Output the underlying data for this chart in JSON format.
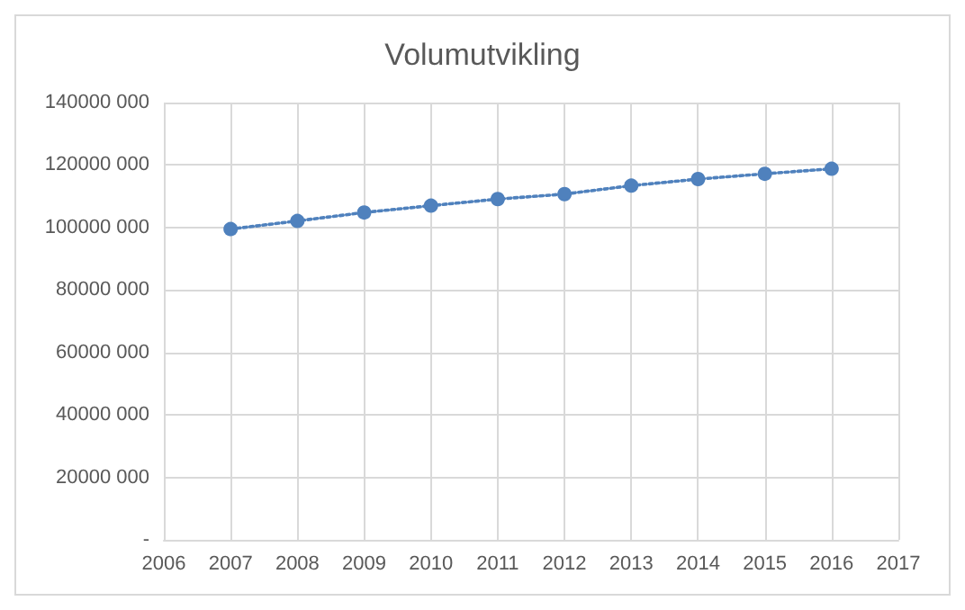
{
  "chart_data": {
    "type": "line",
    "title": "Volumutvikling",
    "x": [
      2007,
      2008,
      2009,
      2010,
      2011,
      2012,
      2013,
      2014,
      2015,
      2016
    ],
    "series": [
      {
        "color": "#4f81bd",
        "values": [
          99500000,
          102100000,
          104800000,
          107000000,
          109100000,
          110700000,
          113400000,
          115500000,
          117200000,
          118800000
        ]
      }
    ],
    "xlim": [
      2006,
      2017
    ],
    "xticks": [
      2006,
      2007,
      2008,
      2009,
      2010,
      2011,
      2012,
      2013,
      2014,
      2015,
      2016,
      2017
    ],
    "ylim": [
      0,
      140000000
    ],
    "yticks": [
      {
        "value": 0,
        "label": "-"
      },
      {
        "value": 20000000,
        "label": "20000 000"
      },
      {
        "value": 40000000,
        "label": "40000 000"
      },
      {
        "value": 60000000,
        "label": "60000 000"
      },
      {
        "value": 80000000,
        "label": "80000 000"
      },
      {
        "value": 100000000,
        "label": "100000 000"
      },
      {
        "value": 120000000,
        "label": "120000 000"
      },
      {
        "value": 140000000,
        "label": "140000 000"
      }
    ],
    "grid": true,
    "marker": "circle",
    "line_style": "dotted"
  }
}
